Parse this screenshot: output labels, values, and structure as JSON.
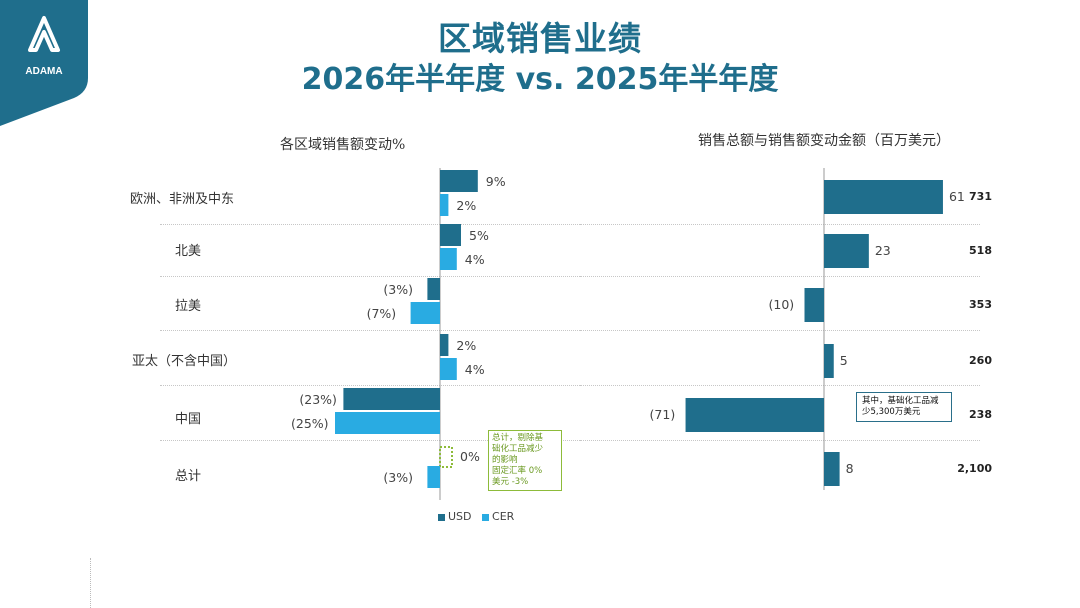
{
  "header": {
    "logo_text": "ADAMA",
    "title": "区域销售业绩",
    "subtitle": "2026年半年度 vs. 2025年半年度"
  },
  "colors": {
    "usd": "#1f6e8c",
    "cer": "#29abe2",
    "title": "#1f6e8c",
    "note_green": "#8dbb3a"
  },
  "legend": {
    "usd": "USD",
    "cer": "CER"
  },
  "callouts": {
    "total_note": [
      "总计，剔除基",
      "础化工品减少",
      "的影响",
      "固定汇率 0%",
      "美元    -3%"
    ],
    "china_note": [
      "其中，基础化工品减",
      "少5,300万美元"
    ]
  },
  "chart_data": [
    {
      "type": "bar",
      "title": "各区域销售额变动%",
      "categories": [
        "欧洲、非洲及中东",
        "北美",
        "拉美",
        "亚太（不含中国）",
        "中国",
        "总计"
      ],
      "series": [
        {
          "name": "USD",
          "values": [
            9,
            5,
            -3,
            2,
            -23,
            0
          ],
          "labels": [
            "9%",
            "5%",
            "(3%)",
            "2%",
            "(23%)",
            "0%"
          ]
        },
        {
          "name": "CER",
          "values": [
            2,
            4,
            -7,
            4,
            -25,
            -3
          ],
          "labels": [
            "2%",
            "4%",
            "(7%)",
            "4%",
            "(25%)",
            "(3%)"
          ]
        }
      ],
      "orientation": "horizontal"
    },
    {
      "type": "bar",
      "title": "销售总额与销售额变动金额（百万美元）",
      "categories": [
        "欧洲、非洲及中东",
        "北美",
        "拉美",
        "亚太（不含中国）",
        "中国",
        "总计"
      ],
      "values": [
        61,
        23,
        -10,
        5,
        -71,
        8
      ],
      "labels": [
        "61",
        "23",
        "(10)",
        "5",
        "(71)",
        "8"
      ],
      "totals": [
        "731",
        "518",
        "353",
        "260",
        "238",
        "2,100"
      ],
      "orientation": "horizontal"
    }
  ]
}
